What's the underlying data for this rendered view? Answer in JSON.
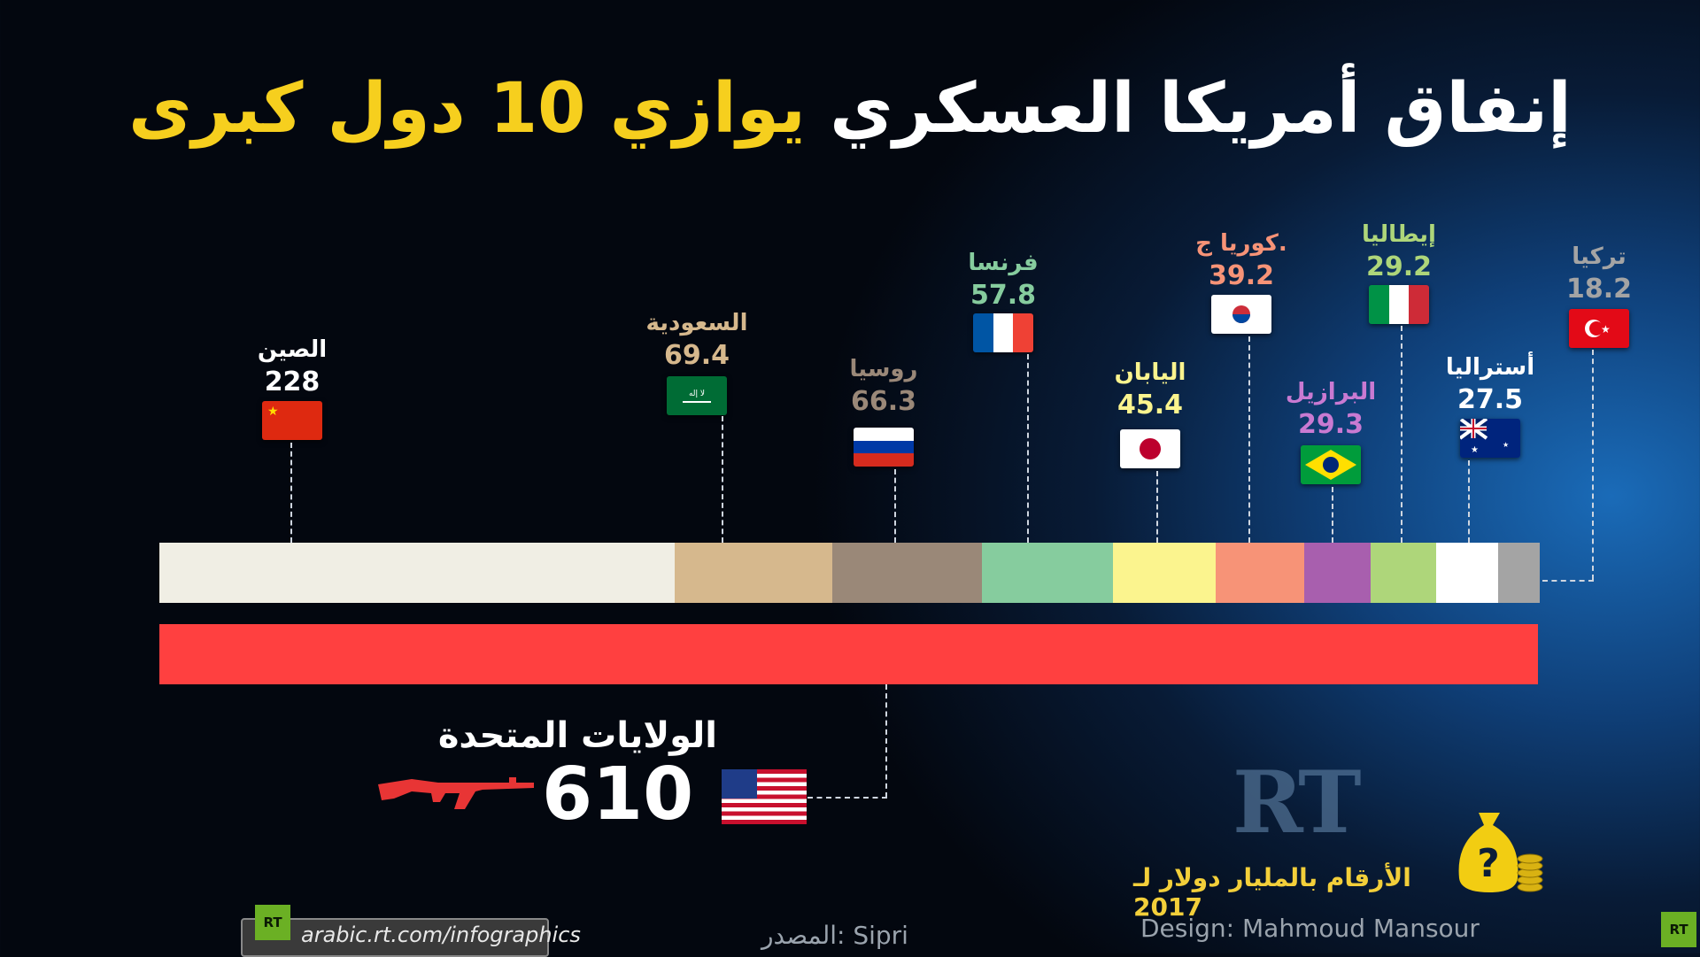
{
  "title": {
    "part_white": "إنفاق أمريكا العسكري",
    "part_yellow": "يوازي 10 دول كبرى"
  },
  "chart_data": {
    "type": "bar",
    "categories": [
      "الصين",
      "السعودية",
      "روسيا",
      "فرنسا",
      "اليابان",
      "كوريا ج.",
      "البرازيل",
      "إيطاليا",
      "أستراليا",
      "تركيا"
    ],
    "values": [
      228,
      69.4,
      66.3,
      57.8,
      45.4,
      39.2,
      29.3,
      29.2,
      27.5,
      18.2
    ],
    "value_labels": [
      "228",
      "69.4",
      "66.3",
      "57.8",
      "45.4",
      "39.2",
      "29.3",
      "29.2",
      "27.5",
      "18.2"
    ],
    "segment_colors": [
      "#f0eee4",
      "#d6b88d",
      "#9a8878",
      "#86cc9e",
      "#fbf48e",
      "#f79377",
      "#a85fae",
      "#aed67a",
      "#ffffff",
      "#a4a4a4"
    ],
    "label_colors": [
      "#ffffff",
      "#d6b88d",
      "#9a8878",
      "#86cc9e",
      "#fbf48e",
      "#f79377",
      "#c97ad2",
      "#aed67a",
      "#ffffff",
      "#a4a4a4"
    ],
    "comparison": {
      "name": "الولايات المتحدة",
      "value": 610,
      "color": "#ff4040"
    }
  },
  "note": "الأرقام بالمليار دولار لـ 2017",
  "design_credit": "Design: Mahmoud Mansour",
  "source": "المصدر: Sipri",
  "site_url": "arabic.rt.com/infographics",
  "logo_text": "RT",
  "icons": [
    "rifle-icon",
    "money-bag-icon",
    "flag-icons"
  ]
}
